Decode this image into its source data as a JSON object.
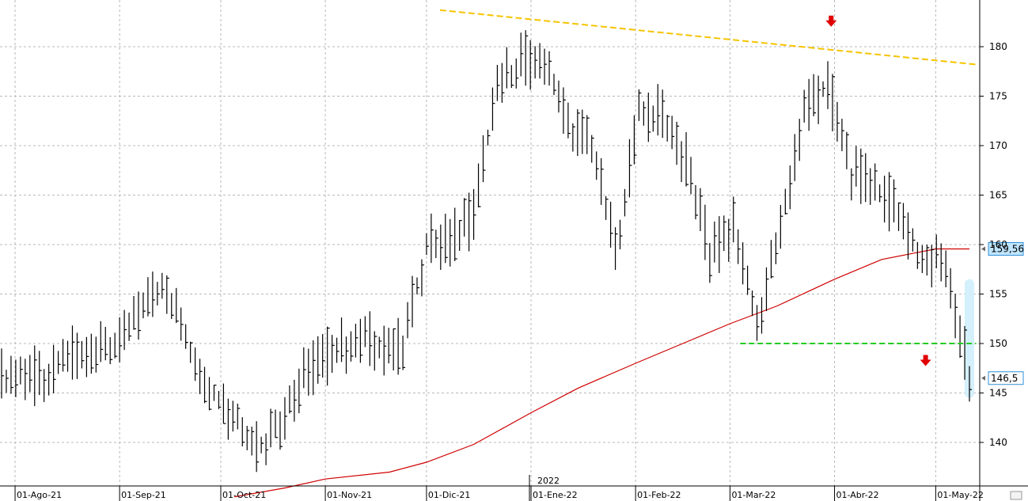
{
  "chart_data": {
    "type": "line",
    "title": "",
    "xlabel": "",
    "ylabel": "",
    "ylim": [
      135,
      185
    ],
    "grid": true,
    "year_label": "2022",
    "y_ticks": [
      "140",
      "145",
      "150",
      "155",
      "160",
      "165",
      "170",
      "175",
      "180"
    ],
    "x_ticks": [
      {
        "label": "01-Ago-21",
        "date": "2021-08-01"
      },
      {
        "label": "01-Sep-21",
        "date": "2021-09-01"
      },
      {
        "label": "01-Oct-21",
        "date": "2021-10-01"
      },
      {
        "label": "01-Nov-21",
        "date": "2021-11-01"
      },
      {
        "label": "01-Dic-21",
        "date": "2021-12-01"
      },
      {
        "label": "01-Ene-22",
        "date": "2022-01-01"
      },
      {
        "label": "01-Feb-22",
        "date": "2022-02-01"
      },
      {
        "label": "01-Mar-22",
        "date": "2022-03-01"
      },
      {
        "label": "01-Abr-22",
        "date": "2022-04-01"
      },
      {
        "label": "01-May-22",
        "date": "2022-05-01"
      }
    ],
    "series": [
      {
        "kind": "price_bars",
        "color": "#000000",
        "points": [
          {
            "date": "2021-07-28",
            "y": 146.5
          },
          {
            "date": "2021-08-04",
            "y": 147.0
          },
          {
            "date": "2021-08-11",
            "y": 146.2
          },
          {
            "date": "2021-08-18",
            "y": 149.5
          },
          {
            "date": "2021-08-25",
            "y": 149.0
          },
          {
            "date": "2021-09-01",
            "y": 149.5
          },
          {
            "date": "2021-09-08",
            "y": 154.0
          },
          {
            "date": "2021-09-15",
            "y": 155.5
          },
          {
            "date": "2021-09-22",
            "y": 149.0
          },
          {
            "date": "2021-09-29",
            "y": 145.0
          },
          {
            "date": "2021-10-06",
            "y": 142.0
          },
          {
            "date": "2021-10-13",
            "y": 139.5
          },
          {
            "date": "2021-10-20",
            "y": 143.0
          },
          {
            "date": "2021-10-27",
            "y": 147.5
          },
          {
            "date": "2021-11-03",
            "y": 149.0
          },
          {
            "date": "2021-11-10",
            "y": 150.5
          },
          {
            "date": "2021-11-17",
            "y": 150.0
          },
          {
            "date": "2021-11-24",
            "y": 149.5
          },
          {
            "date": "2021-12-01",
            "y": 160.0
          },
          {
            "date": "2021-12-08",
            "y": 160.5
          },
          {
            "date": "2021-12-15",
            "y": 163.0
          },
          {
            "date": "2021-12-22",
            "y": 176.0
          },
          {
            "date": "2021-12-29",
            "y": 178.5
          },
          {
            "date": "2022-01-05",
            "y": 179.0
          },
          {
            "date": "2022-01-12",
            "y": 172.0
          },
          {
            "date": "2022-01-19",
            "y": 170.0
          },
          {
            "date": "2022-01-26",
            "y": 159.0
          },
          {
            "date": "2022-02-02",
            "y": 173.5
          },
          {
            "date": "2022-02-09",
            "y": 173.0
          },
          {
            "date": "2022-02-16",
            "y": 168.5
          },
          {
            "date": "2022-02-23",
            "y": 159.0
          },
          {
            "date": "2022-03-02",
            "y": 162.0
          },
          {
            "date": "2022-03-09",
            "y": 152.0
          },
          {
            "date": "2022-03-16",
            "y": 161.5
          },
          {
            "date": "2022-03-23",
            "y": 174.0
          },
          {
            "date": "2022-03-30",
            "y": 176.0
          },
          {
            "date": "2022-04-06",
            "y": 167.0
          },
          {
            "date": "2022-04-13",
            "y": 166.0
          },
          {
            "date": "2022-04-20",
            "y": 163.0
          },
          {
            "date": "2022-04-27",
            "y": 158.0
          },
          {
            "date": "2022-05-04",
            "y": 158.5
          },
          {
            "date": "2022-05-11",
            "y": 146.5
          }
        ]
      },
      {
        "kind": "moving_average",
        "color": "#d00000",
        "points": [
          {
            "date": "2021-10-05",
            "y": 134.5
          },
          {
            "date": "2021-10-20",
            "y": 135.4
          },
          {
            "date": "2021-11-01",
            "y": 136.3
          },
          {
            "date": "2021-11-20",
            "y": 137.0
          },
          {
            "date": "2021-12-01",
            "y": 138.0
          },
          {
            "date": "2021-12-15",
            "y": 139.8
          },
          {
            "date": "2022-01-01",
            "y": 143.0
          },
          {
            "date": "2022-01-15",
            "y": 145.5
          },
          {
            "date": "2022-02-01",
            "y": 148.0
          },
          {
            "date": "2022-02-15",
            "y": 150.0
          },
          {
            "date": "2022-03-01",
            "y": 152.0
          },
          {
            "date": "2022-03-15",
            "y": 153.8
          },
          {
            "date": "2022-04-01",
            "y": 156.5
          },
          {
            "date": "2022-04-15",
            "y": 158.5
          },
          {
            "date": "2022-05-01",
            "y": 159.56
          },
          {
            "date": "2022-05-11",
            "y": 159.56
          }
        ]
      }
    ],
    "annotations": {
      "resistance_line": {
        "color": "#f5c400",
        "from": {
          "date": "2021-12-05",
          "y": 183.7
        },
        "to": {
          "date": "2022-05-13",
          "y": 178.2
        }
      },
      "support_line": {
        "color": "#22cc22",
        "y": 150.0,
        "from_date": "2022-03-04",
        "to_date": "2022-05-13"
      },
      "down_arrows": [
        {
          "color": "#e00000",
          "date": "2022-03-31",
          "y": 182.5
        },
        {
          "date": "2022-04-28",
          "y": 148.2
        }
      ],
      "price_labels": [
        {
          "text": "159,56",
          "y": 159.56,
          "bg": "#bfe6ff",
          "border": "#2f8fd8"
        },
        {
          "text": "146,5",
          "y": 146.5,
          "bg": "#ffffff",
          "border": "#2f8fd8"
        }
      ],
      "highlight_band": {
        "color": "#cfeefc",
        "from": {
          "y": 156.5
        },
        "to": {
          "y": 144.5
        },
        "date": "2022-05-11"
      }
    }
  }
}
